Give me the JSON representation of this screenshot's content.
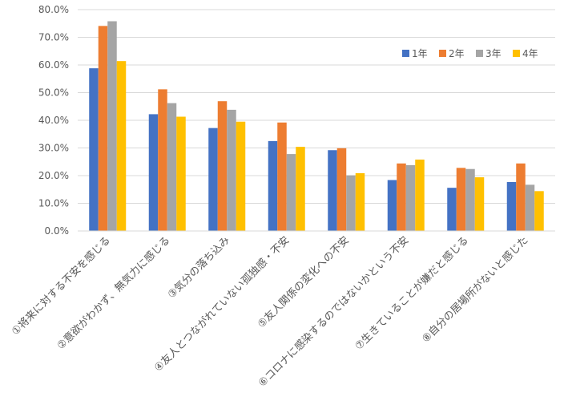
{
  "chart_data": {
    "type": "bar",
    "categories": [
      "①将来に対する不安を感じる",
      "②意欲がわかず、無気力に感じる",
      "③気分の落ち込み",
      "④友人とつながれていない孤独感・不安",
      "⑤友人関係の変化への不安",
      "⑥コロナに感染するのではないかという不安",
      "⑦生きていることが嫌だと感じる",
      "⑧自分の居場所がないと感じた"
    ],
    "series": [
      {
        "name": "1年",
        "color": "#4472C4",
        "values": [
          58.8,
          42.2,
          37.2,
          32.5,
          29.2,
          18.4,
          15.6,
          17.7
        ]
      },
      {
        "name": "2年",
        "color": "#ED7D31",
        "values": [
          74.1,
          51.2,
          46.9,
          39.2,
          29.9,
          24.4,
          22.8,
          24.4
        ]
      },
      {
        "name": "3年",
        "color": "#A5A5A5",
        "values": [
          75.8,
          46.2,
          43.8,
          27.8,
          20.1,
          23.8,
          22.4,
          16.7
        ]
      },
      {
        "name": "4年",
        "color": "#FFC000",
        "values": [
          61.4,
          41.3,
          39.5,
          30.4,
          20.9,
          25.8,
          19.4,
          14.4
        ]
      }
    ],
    "yticks": [
      "0.0%",
      "10.0%",
      "20.0%",
      "30.0%",
      "40.0%",
      "50.0%",
      "60.0%",
      "70.0%",
      "80.0%"
    ],
    "ylim": [
      0,
      80
    ],
    "grid": true,
    "legend_position": "top-right"
  }
}
